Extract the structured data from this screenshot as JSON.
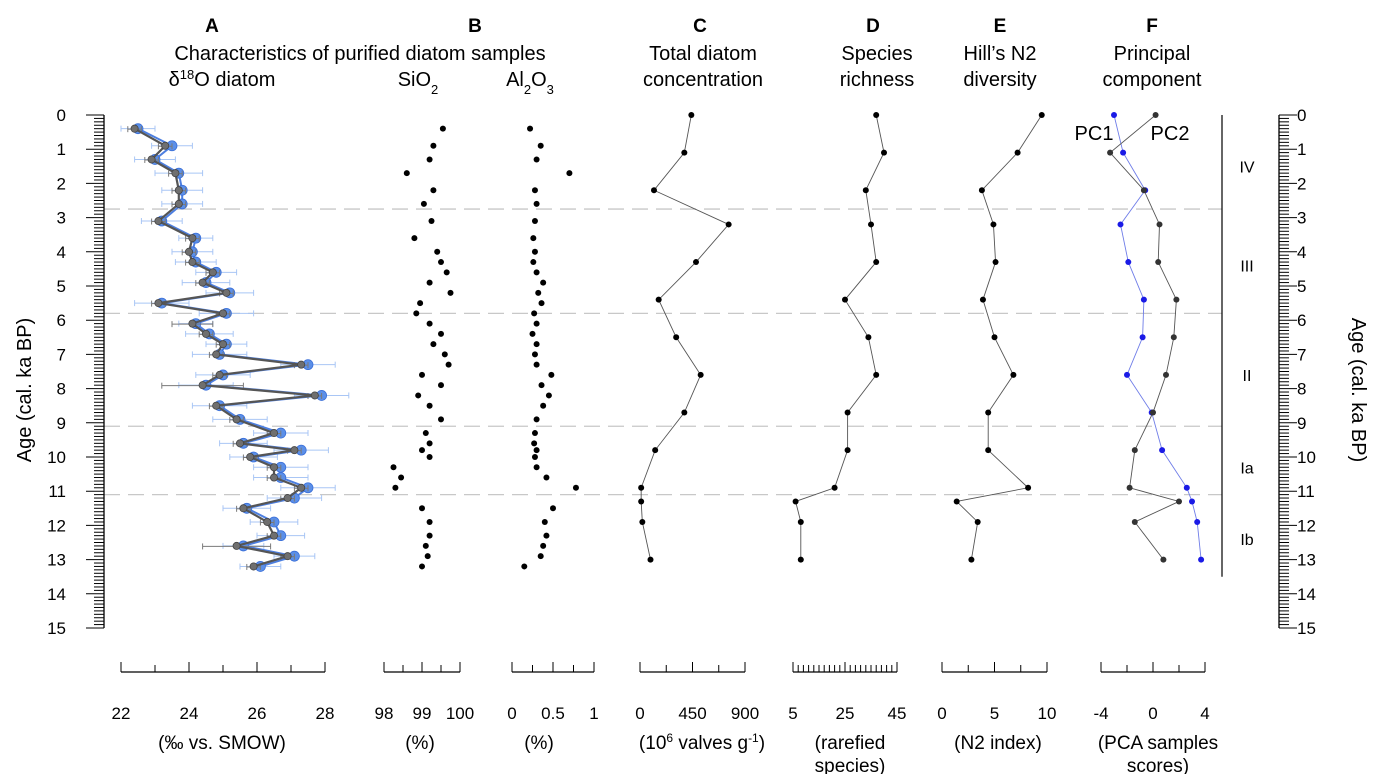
{
  "figure": {
    "y_axis_label": "Age (cal. ka BP)",
    "y_range": [
      0,
      15
    ],
    "y_ticks": [
      "0",
      "1",
      "2",
      "3",
      "4",
      "5",
      "6",
      "7",
      "8",
      "9",
      "10",
      "11",
      "12",
      "13",
      "14",
      "15"
    ],
    "zone_boundaries": [
      2.75,
      5.8,
      9.1,
      11.1
    ],
    "zones": [
      {
        "label": "IV",
        "age": 1.5
      },
      {
        "label": "III",
        "age": 4.4
      },
      {
        "label": "II",
        "age": 7.6
      },
      {
        "label": "Ia",
        "age": 10.3
      },
      {
        "label": "Ib",
        "age": 12.4
      }
    ],
    "header_A": "Characteristics of purified diatom samples"
  },
  "chart_data": [
    {
      "id": "A",
      "type": "line",
      "letter": "A",
      "title_lines": [
        "δ18O diatom"
      ],
      "ylabel": "Age (cal. ka BP)",
      "ylim": [
        0,
        15
      ],
      "xlim": [
        22,
        28
      ],
      "x_ticks": [
        "22",
        "24",
        "26",
        "28"
      ],
      "unit_lines": [
        "(‰ vs. SMOW)"
      ],
      "series": [
        {
          "color": "#5b8fe8",
          "ages": [
            0.4,
            0.9,
            1.3,
            1.7,
            2.2,
            2.6,
            3.1,
            3.6,
            4.0,
            4.3,
            4.6,
            4.9,
            5.2,
            5.5,
            5.8,
            6.1,
            6.4,
            6.7,
            7.0,
            7.3,
            7.6,
            7.9,
            8.2,
            8.5,
            8.9,
            9.3,
            9.6,
            9.8,
            10.0,
            10.3,
            10.6,
            10.9,
            11.2,
            11.5,
            11.9,
            12.3,
            12.6,
            12.9,
            13.2
          ],
          "values": [
            22.5,
            23.5,
            23.0,
            23.7,
            23.8,
            23.8,
            23.2,
            24.2,
            24.1,
            24.2,
            24.8,
            24.5,
            25.2,
            23.2,
            25.1,
            24.2,
            24.6,
            25.1,
            24.9,
            27.5,
            25.0,
            24.5,
            27.9,
            24.9,
            25.5,
            26.7,
            25.6,
            27.3,
            25.9,
            26.7,
            26.7,
            27.5,
            27.1,
            25.7,
            26.5,
            26.7,
            25.6,
            27.1,
            26.1
          ],
          "errors": [
            0.5,
            0.6,
            0.6,
            0.7,
            0.6,
            0.6,
            0.6,
            0.5,
            0.6,
            0.6,
            0.6,
            0.7,
            0.7,
            0.8,
            0.8,
            0.5,
            0.7,
            0.6,
            0.8,
            0.8,
            0.8,
            0.8,
            0.8,
            0.8,
            0.8,
            0.8,
            0.7,
            0.8,
            0.7,
            0.8,
            0.8,
            0.8,
            0.8,
            0.7,
            0.7,
            0.7,
            0.6,
            0.6,
            0.6
          ]
        },
        {
          "color": "#6f6f6f",
          "ages": [
            0.4,
            0.9,
            1.3,
            1.7,
            2.2,
            2.6,
            3.1,
            3.6,
            4.0,
            4.3,
            4.6,
            4.9,
            5.2,
            5.5,
            5.8,
            6.1,
            6.4,
            6.7,
            7.0,
            7.3,
            7.6,
            7.9,
            8.2,
            8.5,
            8.9,
            9.3,
            9.6,
            9.8,
            10.0,
            10.3,
            10.6,
            10.9,
            11.2,
            11.5,
            11.9,
            12.3,
            12.6,
            12.9,
            13.2
          ],
          "values": [
            22.4,
            23.3,
            22.9,
            23.6,
            23.7,
            23.7,
            23.1,
            24.1,
            24.0,
            24.1,
            24.7,
            24.4,
            25.1,
            23.1,
            25.0,
            24.1,
            24.5,
            25.0,
            24.8,
            27.3,
            24.9,
            24.4,
            27.7,
            24.8,
            25.4,
            26.5,
            25.5,
            27.1,
            25.8,
            26.5,
            26.5,
            27.3,
            26.9,
            25.6,
            26.3,
            26.5,
            25.4,
            26.9,
            25.9
          ],
          "errors": [
            0.2,
            0.2,
            0.2,
            0.2,
            0.2,
            0.2,
            0.2,
            0.2,
            0.2,
            0.2,
            0.2,
            0.2,
            0.2,
            0.2,
            0.2,
            0.6,
            0.2,
            0.2,
            0.2,
            0.2,
            0.2,
            1.2,
            0.2,
            0.2,
            0.2,
            0.2,
            0.2,
            0.2,
            0.2,
            0.2,
            0.2,
            0.2,
            0.2,
            0.2,
            0.2,
            0.2,
            1.0,
            0.2,
            0.2
          ]
        }
      ]
    },
    {
      "id": "B1",
      "type": "scatter",
      "letter": "B",
      "title_lines": [
        "SiO2"
      ],
      "xlim": [
        98,
        100
      ],
      "x_ticks": [
        "98",
        "99",
        "100"
      ],
      "unit_lines": [
        "(%)"
      ],
      "series": [
        {
          "ages": [
            0.4,
            0.9,
            1.3,
            1.7,
            2.2,
            2.6,
            3.1,
            3.6,
            4.0,
            4.3,
            4.6,
            4.9,
            5.2,
            5.5,
            5.8,
            6.1,
            6.4,
            6.7,
            7.0,
            7.3,
            7.6,
            7.9,
            8.2,
            8.5,
            8.9,
            9.3,
            9.6,
            9.8,
            10.0,
            10.3,
            10.6,
            10.9,
            11.5,
            11.9,
            12.3,
            12.6,
            12.9,
            13.2
          ],
          "values": [
            99.55,
            99.3,
            99.2,
            98.6,
            99.3,
            99.05,
            99.25,
            98.8,
            99.4,
            99.5,
            99.65,
            99.2,
            99.75,
            98.95,
            98.85,
            99.2,
            99.5,
            99.3,
            99.6,
            99.7,
            99.0,
            99.5,
            98.9,
            99.2,
            99.5,
            99.1,
            99.2,
            99.0,
            99.2,
            98.25,
            98.45,
            98.3,
            99.0,
            99.2,
            99.2,
            99.1,
            99.15,
            99.0
          ]
        }
      ]
    },
    {
      "id": "B2",
      "type": "scatter",
      "title_lines": [
        "Al2O3"
      ],
      "xlim": [
        0,
        1
      ],
      "x_ticks": [
        "0",
        "0.5",
        "1"
      ],
      "unit_lines": [
        "(%)"
      ],
      "series": [
        {
          "ages": [
            0.4,
            0.9,
            1.3,
            1.7,
            2.2,
            2.6,
            3.1,
            3.6,
            4.0,
            4.3,
            4.6,
            4.9,
            5.2,
            5.5,
            5.8,
            6.1,
            6.4,
            6.7,
            7.0,
            7.3,
            7.6,
            7.9,
            8.2,
            8.5,
            8.9,
            9.3,
            9.6,
            9.8,
            10.0,
            10.3,
            10.6,
            10.9,
            11.5,
            11.9,
            12.3,
            12.6,
            12.9,
            13.2
          ],
          "values": [
            0.22,
            0.35,
            0.3,
            0.7,
            0.28,
            0.3,
            0.28,
            0.26,
            0.28,
            0.26,
            0.3,
            0.38,
            0.32,
            0.36,
            0.27,
            0.3,
            0.25,
            0.3,
            0.28,
            0.3,
            0.48,
            0.36,
            0.45,
            0.38,
            0.3,
            0.28,
            0.27,
            0.3,
            0.28,
            0.3,
            0.42,
            0.78,
            0.5,
            0.4,
            0.42,
            0.38,
            0.35,
            0.15
          ]
        }
      ]
    },
    {
      "id": "C",
      "type": "line",
      "letter": "C",
      "title_lines": [
        "Total diatom",
        "concentration"
      ],
      "xlim": [
        0,
        900
      ],
      "x_ticks": [
        "0",
        "450",
        "900"
      ],
      "unit_lines": [
        "(106 valves g-1)"
      ],
      "series": [
        {
          "ages": [
            0.0,
            1.1,
            2.2,
            3.2,
            4.3,
            5.4,
            6.5,
            7.6,
            8.7,
            9.8,
            10.9,
            11.3,
            11.9,
            13.0
          ],
          "values": [
            440,
            380,
            120,
            760,
            480,
            160,
            310,
            520,
            380,
            130,
            10,
            10,
            20,
            90
          ]
        }
      ]
    },
    {
      "id": "D",
      "type": "line",
      "letter": "D",
      "title_lines": [
        "Species",
        "richness"
      ],
      "xlim": [
        5,
        45
      ],
      "x_ticks": [
        "5",
        "25",
        "45"
      ],
      "unit_lines": [
        "(rarefied",
        "species)"
      ],
      "series": [
        {
          "ages": [
            0.0,
            1.1,
            2.2,
            3.2,
            4.3,
            5.4,
            6.5,
            7.6,
            8.7,
            9.8,
            10.9,
            11.3,
            11.9,
            13.0
          ],
          "values": [
            37,
            40,
            33,
            35,
            37,
            25,
            34,
            37,
            26,
            26,
            21,
            6,
            8,
            8
          ]
        }
      ]
    },
    {
      "id": "E",
      "type": "line",
      "letter": "E",
      "title_lines": [
        "Hill’s N2",
        "diversity"
      ],
      "xlim": [
        0,
        10
      ],
      "x_ticks": [
        "0",
        "5",
        "10"
      ],
      "unit_lines": [
        "(N2 index)"
      ],
      "series": [
        {
          "ages": [
            0.0,
            1.1,
            2.2,
            3.2,
            4.3,
            5.4,
            6.5,
            7.6,
            8.7,
            9.8,
            10.9,
            11.3,
            11.9,
            13.0
          ],
          "values": [
            9.5,
            7.2,
            3.8,
            4.9,
            5.1,
            3.9,
            5.0,
            6.8,
            4.4,
            4.4,
            8.2,
            1.4,
            3.4,
            2.8
          ]
        }
      ]
    },
    {
      "id": "F",
      "type": "line",
      "letter": "F",
      "title_lines": [
        "Principal",
        "component"
      ],
      "xlim": [
        -4,
        4
      ],
      "x_ticks": [
        "-4",
        "0",
        "4"
      ],
      "unit_lines": [
        "(PCA samples",
        "scores)"
      ],
      "series": [
        {
          "name": "PC1",
          "color": "#1a1ae6",
          "ages": [
            0.0,
            1.1,
            2.2,
            3.2,
            4.3,
            5.4,
            6.5,
            7.6,
            8.7,
            9.8,
            10.9,
            11.3,
            11.9,
            13.0
          ],
          "values": [
            -3.0,
            -2.3,
            -0.6,
            -2.5,
            -1.9,
            -0.7,
            -0.8,
            -2.0,
            -0.1,
            0.7,
            2.6,
            3.0,
            3.4,
            3.7
          ]
        },
        {
          "name": "PC2",
          "color": "#333333",
          "ages": [
            0.0,
            1.1,
            2.2,
            3.2,
            4.3,
            5.4,
            6.5,
            7.6,
            8.7,
            9.8,
            10.9,
            11.3,
            11.9,
            13.0
          ],
          "values": [
            0.2,
            -3.3,
            -0.7,
            0.5,
            0.4,
            1.8,
            1.6,
            1.0,
            0.0,
            -1.4,
            -1.8,
            2.0,
            -1.4,
            0.8
          ]
        }
      ]
    }
  ]
}
